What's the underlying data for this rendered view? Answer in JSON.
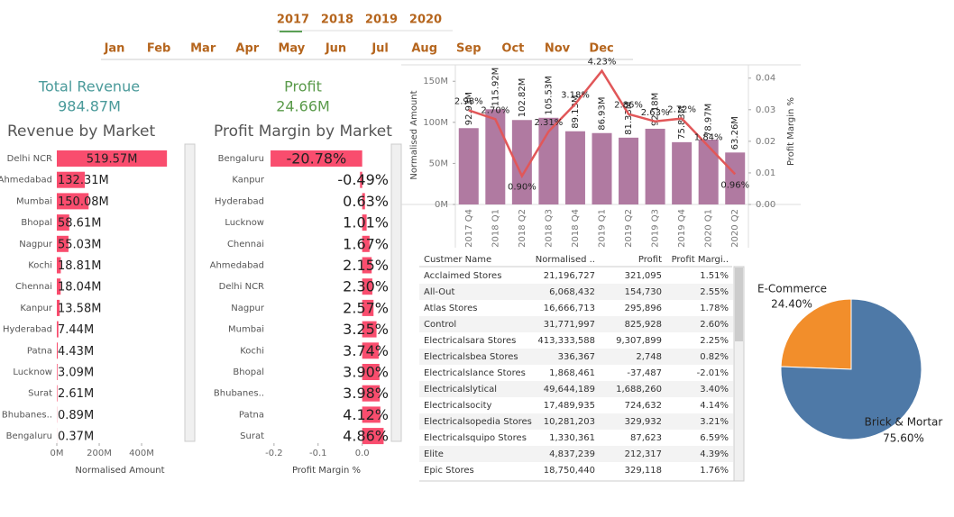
{
  "filters": {
    "years": [
      "2017",
      "2018",
      "2019",
      "2020"
    ],
    "months": [
      "Jan",
      "Feb",
      "Mar",
      "Apr",
      "May",
      "Jun",
      "Jul",
      "Aug",
      "Sep",
      "Oct",
      "Nov",
      "Dec"
    ]
  },
  "kpis": [
    {
      "label": "Total Revenue",
      "value": "984.87M"
    },
    {
      "label": "Profit",
      "value": "24.66M"
    }
  ],
  "chart_data": [
    {
      "type": "bar",
      "orientation": "horizontal",
      "title": "Revenue by Market",
      "xlabel": "Normalised Amount",
      "color": "#f94d6e",
      "categories": [
        "Delhi NCR",
        "Ahmedabad",
        "Mumbai",
        "Bhopal",
        "Nagpur",
        "Kochi",
        "Chennai",
        "Kanpur",
        "Hyderabad",
        "Patna",
        "Lucknow",
        "Surat",
        "Bhubanes..",
        "Bengaluru"
      ],
      "values": [
        519.57,
        132.31,
        150.08,
        58.61,
        55.03,
        18.81,
        18.04,
        13.58,
        7.44,
        4.43,
        3.09,
        2.61,
        0.89,
        0.37
      ],
      "value_labels": [
        "519.57M",
        "132.31M",
        "150.08M",
        "58.61M",
        "55.03M",
        "18.81M",
        "18.04M",
        "13.58M",
        "7.44M",
        "4.43M",
        "3.09M",
        "2.61M",
        "0.89M",
        "0.37M"
      ],
      "xlim": [
        0,
        570
      ],
      "xticks": [
        {
          "value": 0,
          "label": "0M"
        },
        {
          "value": 200,
          "label": "200M"
        },
        {
          "value": 400,
          "label": "400M"
        }
      ]
    },
    {
      "type": "bar",
      "orientation": "horizontal",
      "title": "Profit Margin by Market",
      "xlabel": "Profit Margin %",
      "color": "#f94d6e",
      "categories": [
        "Bengaluru",
        "Kanpur",
        "Hyderabad",
        "Lucknow",
        "Chennai",
        "Ahmedabad",
        "Delhi NCR",
        "Nagpur",
        "Mumbai",
        "Kochi",
        "Bhopal",
        "Bhubanes..",
        "Patna",
        "Surat"
      ],
      "values": [
        -0.2078,
        -0.0049,
        0.0063,
        0.0101,
        0.0167,
        0.0215,
        0.023,
        0.0257,
        0.0325,
        0.0374,
        0.039,
        0.0398,
        0.0412,
        0.0486
      ],
      "value_labels": [
        "-20.78%",
        "-0.49%",
        "0.63%",
        "1.01%",
        "1.67%",
        "2.15%",
        "2.30%",
        "2.57%",
        "3.25%",
        "3.74%",
        "3.90%",
        "3.98%",
        "4.12%",
        "4.86%"
      ],
      "xlim": [
        -0.212,
        0.062
      ],
      "xticks": [
        -0.2,
        -0.1,
        {
          "value": 0,
          "label": "0.0"
        }
      ]
    },
    {
      "type": "combo",
      "ylabel": "Normalised Amount",
      "y2label": "Profit Margin %",
      "categories": [
        "2017 Q4",
        "2018 Q1",
        "2018 Q2",
        "2018 Q3",
        "2018 Q4",
        "2019 Q1",
        "2019 Q2",
        "2019 Q3",
        "2019 Q4",
        "2020 Q1",
        "2020 Q2"
      ],
      "series": [
        {
          "mark": "bar",
          "color": "#b07aa1",
          "values": [
            92.93,
            115.92,
            102.82,
            105.53,
            89.13,
            86.93,
            81.33,
            92.18,
            75.83,
            78.97,
            63.26
          ],
          "value_labels": [
            "92.93M",
            "115.92M",
            "102.82M",
            "105.53M",
            "89.13M",
            "86.93M",
            "81.33M",
            "92.18M",
            "75.83M",
            "78.97M",
            "63.26M"
          ]
        },
        {
          "mark": "line",
          "axis": "y2",
          "color": "#e15759",
          "values": [
            0.0298,
            0.027,
            0.009,
            0.0231,
            0.0318,
            0.0423,
            0.0286,
            0.0263,
            0.0272,
            0.0184,
            0.0096
          ],
          "value_labels": [
            "2.98%",
            "2.70%",
            "0.90%",
            "2.31%",
            "3.18%",
            "4.23%",
            "2.86%",
            "2.63%",
            "2.72%",
            "1.84%",
            "0.96%"
          ]
        }
      ],
      "ylim": [
        0,
        170
      ],
      "yticks": [
        {
          "value": 0,
          "label": "0M"
        },
        {
          "value": 50,
          "label": "50M"
        },
        {
          "value": 100,
          "label": "100M"
        },
        {
          "value": 150,
          "label": "150M"
        }
      ],
      "y2lim": [
        0,
        0.0442
      ],
      "y2ticks": [
        {
          "value": 0,
          "label": "0.00"
        },
        0.01,
        0.02,
        0.03,
        0.04
      ]
    },
    {
      "type": "pie",
      "categories": [
        "E-Commerce",
        "Brick & Mortar"
      ],
      "values": [
        24.4,
        75.6
      ],
      "value_labels": [
        "24.40%",
        "75.60%"
      ],
      "colors": [
        "#f28e2b",
        "#4e79a7"
      ]
    }
  ],
  "table": {
    "columns": [
      "Custmer Name",
      "Normalised ..",
      "Profit",
      "Profit Margi.."
    ],
    "rows": [
      [
        "Acclaimed Stores",
        "21,196,727",
        "321,095",
        "1.51%"
      ],
      [
        "All-Out",
        "6,068,432",
        "154,730",
        "2.55%"
      ],
      [
        "Atlas Stores",
        "16,666,713",
        "295,896",
        "1.78%"
      ],
      [
        "Control",
        "31,771,997",
        "825,928",
        "2.60%"
      ],
      [
        "Electricalsara Stores",
        "413,333,588",
        "9,307,899",
        "2.25%"
      ],
      [
        "Electricalsbea Stores",
        "336,367",
        "2,748",
        "0.82%"
      ],
      [
        "Electricalslance Stores",
        "1,868,461",
        "-37,487",
        "-2.01%"
      ],
      [
        "Electricalslytical",
        "49,644,189",
        "1,688,260",
        "3.40%"
      ],
      [
        "Electricalsocity",
        "17,489,935",
        "724,632",
        "4.14%"
      ],
      [
        "Electricalsopedia Stores",
        "10,281,203",
        "329,932",
        "3.21%"
      ],
      [
        "Electricalsquipo Stores",
        "1,330,361",
        "87,623",
        "6.59%"
      ],
      [
        "Elite",
        "4,837,239",
        "212,317",
        "4.39%"
      ],
      [
        "Epic Stores",
        "18,750,440",
        "329,118",
        "1.76%"
      ]
    ]
  }
}
